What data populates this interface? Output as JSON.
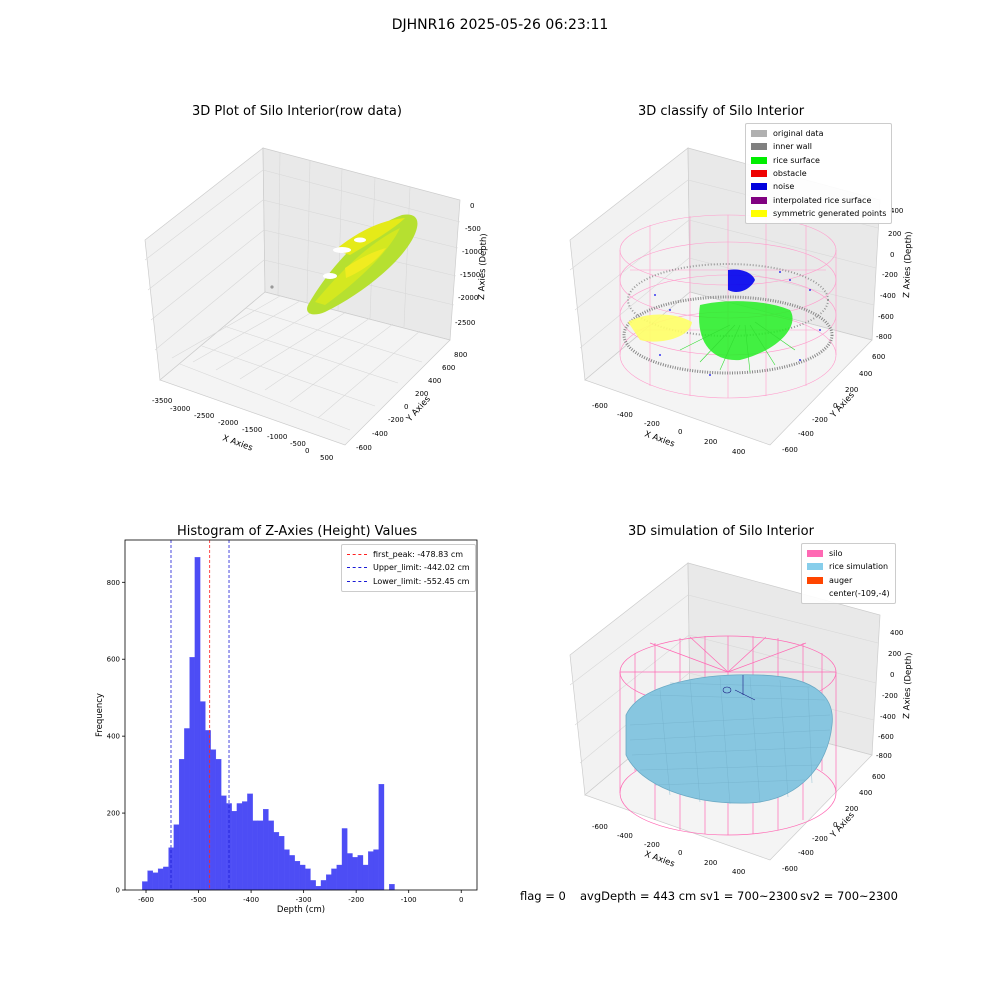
{
  "suptitle": "DJHNR16 2025-05-26 06:23:11",
  "colors": {
    "histogram": "#4d4df5",
    "first_peak": "#ff2020",
    "limits": "#1a1ad6",
    "silo": "#ff69b4",
    "rice_simulation": "#87c6e0",
    "auger": "#ff4500",
    "noise": "#0000ee",
    "rice_surface": "#00ee00",
    "inner_wall": "#888888",
    "symmetric": "#ffff33"
  },
  "panels": {
    "raw": {
      "title": "3D Plot of Silo Interior(row data)",
      "xlabel": "X Axies",
      "ylabel": "Y Axies",
      "zlabel": "Z Axies (Depth)",
      "xticks": [
        "-3500",
        "-3000",
        "-2500",
        "-2000",
        "-1500",
        "-1000",
        "-500",
        "0",
        "500"
      ],
      "yticks": [
        "800",
        "600",
        "400",
        "200",
        "0",
        "-200",
        "-400",
        "-600"
      ],
      "zticks": [
        "0",
        "-500",
        "-1000",
        "-1500",
        "-2000",
        "-2500"
      ]
    },
    "classify": {
      "title": "3D classify of Silo Interior",
      "xlabel": "X Axies",
      "ylabel": "Y Axies",
      "zlabel": "Z Axies (Depth)",
      "xticks": [
        "-600",
        "-400",
        "-200",
        "0",
        "200",
        "400"
      ],
      "yticks": [
        "600",
        "400",
        "200",
        "0",
        "-200",
        "-400",
        "-600"
      ],
      "zticks": [
        "400",
        "200",
        "0",
        "-200",
        "-400",
        "-600",
        "-800"
      ],
      "legend": [
        {
          "label": "original data",
          "color": "#b0b0b0"
        },
        {
          "label": "inner wall",
          "color": "#808080"
        },
        {
          "label": "rice surface",
          "color": "#00ee00"
        },
        {
          "label": "obstacle",
          "color": "#ee0000"
        },
        {
          "label": "noise",
          "color": "#0000dd"
        },
        {
          "label": "interpolated rice surface",
          "color": "#800080"
        },
        {
          "label": "symmetric generated points",
          "color": "#ffff00"
        }
      ]
    },
    "simulation": {
      "title": "3D simulation of Silo Interior",
      "xlabel": "X Axies",
      "ylabel": "Y Axies",
      "zlabel": "Z Axies (Depth)",
      "xticks": [
        "-600",
        "-400",
        "-200",
        "0",
        "200",
        "400"
      ],
      "yticks": [
        "600",
        "400",
        "200",
        "0",
        "-200",
        "-400",
        "-600"
      ],
      "zticks": [
        "400",
        "200",
        "0",
        "-200",
        "-400",
        "-600",
        "-800"
      ],
      "legend": [
        {
          "label": "silo",
          "color": "#ff69b4"
        },
        {
          "label": "rice simulation",
          "color": "#87ceeb"
        },
        {
          "label": "auger",
          "color": "#ff4500"
        },
        {
          "label": "center(-109,-4)",
          "color": ""
        }
      ]
    }
  },
  "footer": {
    "flag": "flag = 0",
    "avg_depth": "avgDepth = 443 cm",
    "sv1": "sv1 = 700~2300",
    "sv2": "sv2 = 700~2300"
  },
  "chart_data": {
    "type": "bar",
    "title": "Histogram of Z-Axies (Height) Values",
    "xlabel": "Depth (cm)",
    "ylabel": "Frequency",
    "xlim": [
      -640,
      30
    ],
    "ylim": [
      0,
      910
    ],
    "xticks": [
      -600,
      -500,
      -400,
      -300,
      -200,
      -100,
      0
    ],
    "yticks": [
      0,
      200,
      400,
      600,
      800
    ],
    "bin_start": -607,
    "bin_width": 10,
    "values": [
      22,
      50,
      45,
      55,
      60,
      110,
      170,
      340,
      420,
      605,
      865,
      490,
      415,
      365,
      340,
      245,
      225,
      205,
      225,
      230,
      250,
      180,
      180,
      210,
      180,
      150,
      140,
      105,
      90,
      75,
      65,
      55,
      25,
      10,
      25,
      40,
      55,
      65,
      160,
      95,
      85,
      90,
      65,
      100,
      105,
      275,
      0,
      15
    ],
    "vlines": [
      {
        "label": "first_peak: -478.83 cm",
        "x": -478.83,
        "color": "#ff2020"
      },
      {
        "label": "Upper_limit: -442.02 cm",
        "x": -442.02,
        "color": "#1a1ad6"
      },
      {
        "label": "Lower_limit: -552.45 cm",
        "x": -552.45,
        "color": "#1a1ad6"
      }
    ]
  }
}
